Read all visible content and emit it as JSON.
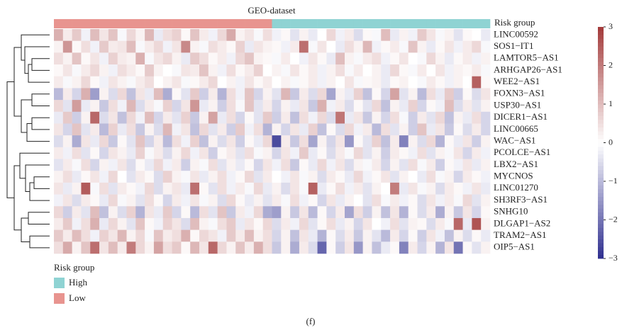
{
  "chart_data": {
    "type": "heatmap",
    "title": "GEO-dataset",
    "rows": [
      "LINC00592",
      "SOS1−IT1",
      "LAMTOR5−AS1",
      "ARHGAP26−AS1",
      "WEE2−AS1",
      "FOXN3−AS1",
      "USP30−AS1",
      "DICER1−AS1",
      "LINC00665",
      "WAC−AS1",
      "PCOLCE−AS1",
      "LBX2−AS1",
      "MYCNOS",
      "LINC01270",
      "SH3RF3−AS1",
      "SNHG10",
      "DLGAP1−AS2",
      "TRAM2−AS1",
      "OIP5−AS1"
    ],
    "annotation": {
      "name": "Risk group",
      "legend_title": "Risk group",
      "levels": [
        {
          "name": "High",
          "color": "#8fd3d3"
        },
        {
          "name": "Low",
          "color": "#e8948f"
        }
      ],
      "column_groups": [
        "Low",
        "Low",
        "Low",
        "Low",
        "Low",
        "Low",
        "Low",
        "Low",
        "Low",
        "Low",
        "Low",
        "Low",
        "Low",
        "Low",
        "Low",
        "Low",
        "Low",
        "Low",
        "Low",
        "Low",
        "Low",
        "Low",
        "Low",
        "Low",
        "High",
        "High",
        "High",
        "High",
        "High",
        "High",
        "High",
        "High",
        "High",
        "High",
        "High",
        "High",
        "High",
        "High",
        "High",
        "High",
        "High",
        "High",
        "High",
        "High",
        "High",
        "High",
        "High",
        "High"
      ]
    },
    "values": [
      [
        1.2,
        0.3,
        0.8,
        -0.2,
        1.0,
        0.4,
        0.9,
        -0.1,
        0.6,
        0.2,
        1.1,
        -0.3,
        0.5,
        0.7,
        0.1,
        0.9,
        0.3,
        -0.2,
        0.6,
        1.3,
        0.2,
        0.4,
        -0.1,
        0.5,
        -0.2,
        0.1,
        -0.4,
        0.2,
        -0.3,
        0.0,
        0.6,
        -0.2,
        0.3,
        -0.5,
        0.1,
        -0.1,
        1.0,
        -0.3,
        0.2,
        -0.2,
        0.8,
        0.4,
        -0.1,
        0.2,
        -0.4,
        0.1,
        0.0,
        -0.3
      ],
      [
        0.2,
        1.6,
        0.1,
        0.5,
        -0.2,
        0.8,
        0.3,
        0.4,
        1.0,
        -0.1,
        0.3,
        0.6,
        -0.2,
        0.4,
        1.8,
        0.2,
        -0.1,
        0.5,
        0.3,
        0.1,
        0.7,
        -0.3,
        0.4,
        0.2,
        0.1,
        -0.2,
        0.3,
        2.2,
        -0.1,
        0.4,
        0.0,
        -0.3,
        0.5,
        0.2,
        1.1,
        -0.2,
        0.1,
        0.3,
        -0.1,
        0.9,
        0.2,
        -0.3,
        0.1,
        0.4,
        -0.2,
        0.3,
        0.6,
        -0.1
      ],
      [
        0.5,
        0.2,
        0.9,
        0.1,
        0.4,
        -0.2,
        0.7,
        0.3,
        0.2,
        1.2,
        -0.1,
        0.4,
        0.6,
        0.2,
        -0.3,
        0.8,
        0.5,
        0.1,
        0.3,
        -0.2,
        0.6,
        0.9,
        0.2,
        0.1,
        -0.1,
        0.3,
        0.0,
        -0.2,
        0.4,
        0.1,
        -0.3,
        1.0,
        0.2,
        -0.1,
        0.3,
        0.5,
        -0.2,
        0.1,
        0.4,
        0.0,
        -0.1,
        0.6,
        0.2,
        -0.3,
        0.1,
        0.3,
        -0.2,
        0.2
      ],
      [
        0.1,
        0.4,
        -0.1,
        0.3,
        0.6,
        0.2,
        -0.2,
        0.5,
        0.3,
        0.1,
        0.8,
        0.2,
        0.0,
        -0.1,
        0.4,
        0.3,
        0.9,
        0.2,
        -0.2,
        0.5,
        0.1,
        0.3,
        0.7,
        0.0,
        0.2,
        -0.1,
        0.4,
        0.1,
        0.3,
        -0.2,
        0.2,
        0.5,
        -0.1,
        0.3,
        0.0,
        0.2,
        -0.3,
        0.6,
        0.1,
        -0.1,
        0.3,
        0.0,
        0.4,
        -0.2,
        0.2,
        0.1,
        0.3,
        -0.1
      ],
      [
        0.3,
        -0.1,
        0.2,
        0.6,
        0.1,
        -0.2,
        0.4,
        0.2,
        -0.1,
        0.3,
        0.5,
        0.0,
        0.2,
        0.4,
        -0.1,
        0.1,
        0.3,
        0.6,
        0.0,
        0.2,
        -0.2,
        0.4,
        0.1,
        0.3,
        0.0,
        0.2,
        -0.1,
        0.1,
        0.3,
        -0.2,
        0.2,
        0.0,
        0.4,
        -0.1,
        0.1,
        0.2,
        -0.3,
        0.1,
        0.2,
        0.0,
        -0.1,
        0.3,
        0.1,
        -0.2,
        0.2,
        0.0,
        2.4,
        0.1
      ],
      [
        -1.0,
        0.3,
        -0.6,
        1.2,
        -1.4,
        0.2,
        -0.5,
        0.6,
        -0.9,
        0.4,
        -0.3,
        1.0,
        -1.2,
        0.1,
        -0.4,
        0.8,
        -0.7,
        0.3,
        -1.1,
        0.5,
        -0.2,
        0.9,
        -0.6,
        0.2,
        -0.4,
        1.1,
        -0.8,
        0.3,
        -0.5,
        0.6,
        -1.3,
        0.2,
        -0.3,
        0.7,
        -0.9,
        0.1,
        -0.6,
        1.4,
        -0.4,
        0.2,
        -1.0,
        0.5,
        -0.3,
        0.8,
        -0.7,
        0.1,
        -0.5,
        0.4
      ],
      [
        0.6,
        -0.4,
        1.5,
        -0.3,
        0.2,
        -0.8,
        0.5,
        -0.2,
        1.1,
        -0.5,
        0.3,
        -0.1,
        0.7,
        -0.6,
        0.4,
        1.6,
        -0.3,
        0.2,
        -0.7,
        0.5,
        -0.1,
        0.9,
        -0.4,
        0.3,
        -0.6,
        0.2,
        -0.3,
        0.4,
        -0.8,
        1.2,
        -0.2,
        0.3,
        -0.5,
        0.1,
        -0.4,
        0.6,
        -0.9,
        0.2,
        -0.3,
        0.7,
        -0.6,
        0.1,
        -0.2,
        1.0,
        -0.5,
        0.3,
        -0.4,
        0.2
      ],
      [
        -0.3,
        0.8,
        -0.7,
        0.2,
        2.3,
        -0.5,
        0.4,
        -0.9,
        0.6,
        -0.2,
        1.0,
        -0.6,
        0.3,
        -0.4,
        0.7,
        -0.8,
        0.2,
        1.4,
        -0.3,
        0.5,
        -0.6,
        0.1,
        -0.4,
        0.8,
        -0.7,
        0.3,
        -0.9,
        0.5,
        -0.2,
        0.6,
        -0.5,
        2.1,
        -0.3,
        0.4,
        -0.8,
        0.2,
        -0.6,
        0.5,
        -0.1,
        -0.7,
        0.3,
        -0.4,
        0.6,
        -0.9,
        0.2,
        -0.3,
        0.5,
        -0.6
      ],
      [
        0.4,
        -0.6,
        0.9,
        -0.4,
        0.3,
        -1.0,
        0.7,
        -0.3,
        0.5,
        -0.8,
        0.2,
        -0.5,
        1.1,
        -0.2,
        0.4,
        -0.9,
        0.6,
        -0.4,
        0.3,
        -0.7,
        0.8,
        -0.2,
        0.5,
        -1.1,
        0.2,
        -0.6,
        0.4,
        -0.3,
        0.7,
        -0.9,
        0.1,
        -0.5,
        0.6,
        -0.2,
        0.3,
        -1.0,
        0.5,
        -0.4,
        0.2,
        -0.7,
        0.9,
        -0.3,
        0.4,
        -0.8,
        0.1,
        -0.5,
        0.3,
        -0.6
      ],
      [
        -0.5,
        0.2,
        -1.2,
        0.4,
        -0.3,
        0.6,
        -0.8,
        0.1,
        -0.4,
        0.9,
        -0.6,
        0.3,
        -1.0,
        0.5,
        -0.2,
        0.7,
        -0.9,
        0.2,
        -0.5,
        0.4,
        -0.7,
        0.1,
        -0.3,
        0.6,
        -2.6,
        0.3,
        -0.8,
        0.5,
        -1.3,
        0.2,
        -0.6,
        0.4,
        -1.5,
        0.1,
        -0.4,
        0.7,
        -0.9,
        0.3,
        -1.8,
        0.2,
        -0.5,
        0.6,
        -1.1,
        0.1,
        -0.3,
        0.4,
        -0.7,
        0.2
      ],
      [
        0.3,
        -0.2,
        0.5,
        -0.4,
        0.1,
        -0.6,
        0.4,
        0.2,
        -0.3,
        0.7,
        -0.1,
        0.3,
        -0.5,
        0.2,
        0.6,
        -0.2,
        0.4,
        -0.7,
        0.1,
        0.3,
        -0.4,
        0.5,
        -0.1,
        0.2,
        -0.6,
        0.4,
        -0.2,
        0.8,
        -0.3,
        0.1,
        -0.5,
        0.3,
        -0.1,
        0.6,
        -0.4,
        0.2,
        -0.7,
        0.3,
        0.1,
        -0.2,
        0.5,
        -0.4,
        0.2,
        -0.1,
        0.4,
        -0.6,
        0.3,
        -0.2
      ],
      [
        -0.4,
        0.3,
        -0.1,
        0.5,
        -0.6,
        0.2,
        -0.2,
        0.4,
        -0.5,
        0.1,
        -0.3,
        0.6,
        -0.2,
        0.3,
        -0.7,
        0.2,
        -0.1,
        0.5,
        -0.4,
        0.2,
        -0.3,
        0.1,
        -0.6,
        0.4,
        -0.2,
        0.5,
        -0.8,
        0.1,
        -0.3,
        0.6,
        -0.2,
        0.4,
        -0.5,
        0.2,
        -0.1,
        0.3,
        -0.6,
        0.2,
        -0.4,
        0.5,
        -0.1,
        0.3,
        -0.7,
        0.1,
        -0.2,
        0.4,
        -0.3,
        0.2
      ],
      [
        0.2,
        0.5,
        -0.3,
        0.1,
        0.4,
        -0.2,
        0.6,
        0.0,
        -0.4,
        0.3,
        0.1,
        -0.5,
        0.7,
        0.2,
        -0.1,
        0.4,
        -0.3,
        0.2,
        0.5,
        -0.2,
        0.1,
        0.6,
        -0.4,
        0.3,
        0.0,
        -0.2,
        0.4,
        -0.1,
        0.2,
        -0.5,
        0.3,
        0.1,
        -0.3,
        0.6,
        -0.2,
        0.1,
        0.4,
        -0.4,
        0.2,
        0.0,
        -0.3,
        0.5,
        -0.1,
        0.2,
        -0.6,
        0.3,
        0.1,
        -0.2
      ],
      [
        0.4,
        -0.3,
        0.2,
        2.5,
        -0.1,
        0.5,
        -0.4,
        0.3,
        0.1,
        -0.2,
        0.6,
        -0.5,
        0.2,
        0.4,
        -0.3,
        2.2,
        0.1,
        -0.4,
        0.5,
        -0.2,
        0.3,
        -0.1,
        0.6,
        -0.3,
        0.2,
        -0.5,
        0.4,
        -0.1,
        2.4,
        -0.3,
        0.1,
        0.5,
        -0.2,
        0.3,
        -0.4,
        0.2,
        0.0,
        2.0,
        -0.3,
        0.4,
        -0.1,
        0.2,
        -0.5,
        0.3,
        0.1,
        -0.2,
        0.4,
        -0.3
      ],
      [
        -0.2,
        0.4,
        -0.5,
        0.3,
        0.1,
        -0.3,
        0.6,
        -0.1,
        0.2,
        -0.4,
        0.5,
        0.1,
        -0.6,
        0.3,
        -0.2,
        0.4,
        -0.1,
        0.2,
        -0.5,
        0.6,
        0.1,
        -0.3,
        0.2,
        -0.4,
        0.3,
        -0.1,
        0.5,
        -0.2,
        0.1,
        -0.6,
        0.4,
        -0.3,
        0.2,
        0.0,
        -0.4,
        0.5,
        -0.1,
        0.3,
        -0.2,
        0.1,
        -0.5,
        0.4,
        -0.2,
        0.3,
        -0.1,
        0.6,
        -0.4,
        0.2
      ],
      [
        0.6,
        -0.7,
        0.3,
        -0.4,
        1.0,
        -0.9,
        0.2,
        -0.5,
        0.7,
        -1.1,
        0.4,
        -0.3,
        0.8,
        -0.6,
        0.1,
        -1.0,
        0.5,
        -0.4,
        0.9,
        -0.8,
        0.3,
        -0.2,
        0.6,
        -1.2,
        -1.4,
        0.2,
        -0.8,
        0.4,
        -1.0,
        0.1,
        -0.6,
        0.3,
        -1.3,
        0.5,
        -0.7,
        0.2,
        -0.9,
        0.4,
        -1.1,
        0.1,
        -0.5,
        0.3,
        -1.2,
        0.2,
        -0.8,
        0.4,
        -0.6,
        0.1
      ],
      [
        0.3,
        0.8,
        -0.2,
        0.5,
        1.2,
        -0.3,
        0.6,
        0.2,
        -0.4,
        0.9,
        0.1,
        -0.2,
        0.7,
        0.4,
        -0.5,
        1.0,
        0.2,
        -0.1,
        0.5,
        0.8,
        -0.3,
        0.4,
        0.1,
        0.6,
        -0.5,
        0.3,
        -0.2,
        0.6,
        -0.4,
        0.1,
        0.5,
        -0.3,
        0.2,
        -0.6,
        0.4,
        0.0,
        -0.2,
        0.5,
        -0.4,
        0.2,
        0.1,
        -0.5,
        0.3,
        -0.1,
        2.3,
        -0.3,
        2.6,
        0.2
      ],
      [
        0.8,
        0.3,
        1.0,
        0.5,
        -0.2,
        0.7,
        0.4,
        1.1,
        0.2,
        0.6,
        -0.1,
        0.9,
        0.3,
        0.5,
        1.2,
        0.1,
        0.6,
        0.4,
        -0.2,
        0.8,
        0.3,
        1.0,
        0.2,
        0.5,
        -0.6,
        0.2,
        -0.9,
        0.4,
        -0.3,
        -1.1,
        0.1,
        -0.5,
        0.3,
        -0.8,
        0.2,
        -0.4,
        -1.0,
        0.3,
        -0.6,
        0.1,
        -0.7,
        0.4,
        -0.2,
        -0.9,
        0.2,
        -0.5,
        0.1,
        -0.3
      ],
      [
        0.5,
        1.3,
        0.2,
        0.9,
        2.2,
        0.4,
        1.0,
        0.3,
        2.0,
        0.6,
        0.2,
        1.4,
        0.5,
        0.8,
        0.1,
        1.1,
        0.4,
        2.3,
        0.6,
        0.2,
        0.9,
        0.3,
        1.2,
        0.5,
        -0.8,
        0.2,
        -1.2,
        0.3,
        -0.5,
        -2.2,
        0.1,
        -0.7,
        0.4,
        -1.5,
        0.2,
        -0.9,
        -0.3,
        0.1,
        -1.8,
        0.3,
        -0.6,
        0.2,
        -1.1,
        0.4,
        -2.0,
        0.1,
        -0.4,
        0.2
      ]
    ],
    "colors": {
      "low": "#2f2f8f",
      "mid": "#ffffff",
      "high": "#a33a3a"
    },
    "zlim": [
      -3,
      3
    ],
    "zticks": [
      3,
      2,
      1,
      0,
      {
        "value": -1,
        "label": "−1"
      },
      {
        "value": -2,
        "label": "−2"
      },
      {
        "value": -3,
        "label": "−3"
      }
    ],
    "caption": "(f)"
  }
}
